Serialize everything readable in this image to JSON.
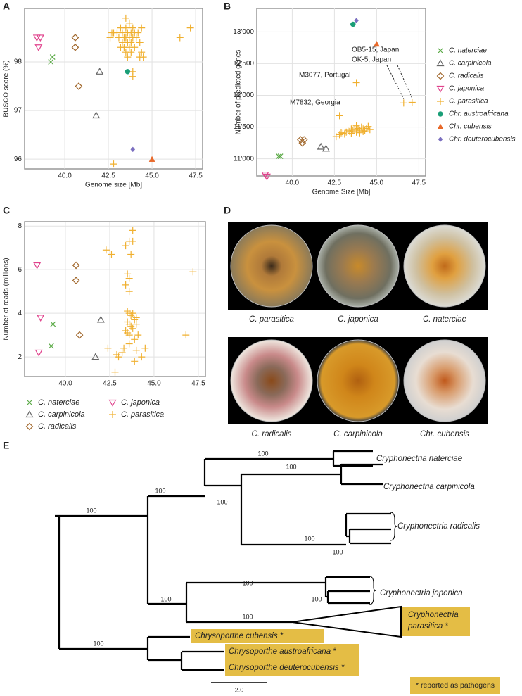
{
  "panels": [
    "A",
    "B",
    "C",
    "D",
    "E"
  ],
  "chart_data": [
    {
      "type": "scatter",
      "xlabel": "Genome size [Mb]",
      "ylabel": "BUSCO score (%)",
      "xlim": [
        37.7,
        47.9
      ],
      "ylim": [
        95.8,
        99.1
      ],
      "xticks": [
        {
          "value": 40,
          "label": "40.0"
        },
        42.5,
        {
          "value": 45,
          "label": "45.0"
        },
        47.5
      ],
      "yticks": [
        96,
        97,
        98
      ],
      "grid": true,
      "legend": false,
      "series": [
        {
          "name": "C. naterciae",
          "color": "#5aaa46",
          "marker": "x",
          "x": [
            39.3,
            39.2
          ],
          "values": [
            98.1,
            98.0
          ]
        },
        {
          "name": "C. carpinicola",
          "color": "#666666",
          "marker": "triangle",
          "x": [
            42.0,
            41.8
          ],
          "values": [
            97.8,
            96.9
          ]
        },
        {
          "name": "C. radicalis",
          "color": "#a0662a",
          "marker": "diamond",
          "x": [
            40.6,
            40.6,
            40.8
          ],
          "values": [
            98.5,
            98.3,
            97.5
          ]
        },
        {
          "name": "C. japonica",
          "color": "#e0428c",
          "marker": "triangle-down",
          "x": [
            38.4,
            38.6,
            38.5
          ],
          "values": [
            98.5,
            98.5,
            98.3
          ]
        },
        {
          "name": "C. parasitica",
          "color": "#f0b030",
          "marker": "plus",
          "x": [
            43.0,
            43.1,
            43.2,
            43.3,
            43.3,
            43.4,
            43.4,
            43.5,
            43.5,
            43.5,
            43.6,
            43.6,
            43.6,
            43.7,
            43.7,
            43.7,
            43.8,
            43.8,
            43.8,
            43.9,
            43.9,
            44.0,
            44.0,
            44.1,
            44.2,
            44.3,
            42.8,
            42.6,
            42.7,
            43.2,
            44.3,
            44.4,
            44.5,
            46.6,
            47.2,
            42.8,
            43.9,
            43.9,
            44.4,
            43.5
          ],
          "values": [
            98.6,
            98.5,
            98.7,
            98.4,
            98.6,
            98.5,
            98.3,
            98.7,
            98.5,
            98.2,
            98.6,
            98.4,
            98.1,
            98.8,
            98.5,
            98.3,
            98.6,
            98.4,
            98.2,
            98.7,
            98.5,
            98.6,
            98.3,
            98.5,
            98.6,
            98.4,
            98.6,
            98.5,
            98.6,
            98.3,
            98.1,
            98.2,
            98.1,
            98.5,
            98.7,
            95.9,
            97.8,
            97.7,
            98.7,
            98.9
          ]
        },
        {
          "name": "Chr. austroafricana",
          "color": "#1a9e77",
          "marker": "circle",
          "x": [
            43.6
          ],
          "values": [
            97.8
          ]
        },
        {
          "name": "Chr. cubensis",
          "color": "#e8692a",
          "marker": "triangle-filled",
          "x": [
            45.0
          ],
          "values": [
            96.0
          ]
        },
        {
          "name": "Chr. deuterocubensis",
          "color": "#7b6fc0",
          "marker": "diamond-filled",
          "x": [
            43.9
          ],
          "values": [
            96.2
          ]
        }
      ]
    },
    {
      "type": "scatter",
      "xlabel": "Genome Size [Mb]",
      "ylabel": "Number of predicted genes",
      "xlim": [
        37.9,
        47.9
      ],
      "ylim": [
        10730,
        13370
      ],
      "xticks": [
        {
          "value": 40,
          "label": "40.0"
        },
        42.5,
        {
          "value": 45,
          "label": "45.0"
        },
        47.5
      ],
      "yticks": [
        {
          "value": 11000,
          "label": "11'000"
        },
        {
          "value": 11500,
          "label": "11'500"
        },
        {
          "value": 12000,
          "label": "12'000"
        },
        {
          "value": 12500,
          "label": "12'500"
        },
        {
          "value": 13000,
          "label": "13'000"
        }
      ],
      "grid": true,
      "legend": "right",
      "annotations": [
        "M7832, Georgia",
        "M3077, Portugal",
        "OB5-15, Japan",
        "OK-5, Japan"
      ],
      "series": [
        {
          "name": "C. naterciae",
          "color": "#5aaa46",
          "marker": "x",
          "x": [
            39.2,
            39.3
          ],
          "values": [
            11040,
            11040
          ]
        },
        {
          "name": "C. carpinicola",
          "color": "#666666",
          "marker": "triangle",
          "x": [
            41.7,
            42.0
          ],
          "values": [
            11190,
            11160
          ]
        },
        {
          "name": "C. radicalis",
          "color": "#a0662a",
          "marker": "diamond",
          "x": [
            40.5,
            40.7,
            40.6
          ],
          "values": [
            11300,
            11300,
            11250
          ]
        },
        {
          "name": "C. japonica",
          "color": "#e0428c",
          "marker": "triangle-down",
          "x": [
            38.4,
            38.5
          ],
          "values": [
            10750,
            10720
          ]
        },
        {
          "name": "C. parasitica",
          "color": "#f0b030",
          "marker": "plus",
          "x": [
            42.6,
            42.8,
            43.0,
            43.2,
            43.3,
            43.4,
            43.5,
            43.6,
            43.7,
            43.8,
            43.9,
            44.0,
            44.1,
            44.2,
            44.3,
            44.4,
            44.5,
            44.6,
            43.5,
            43.8,
            44.0,
            44.2,
            43.1,
            42.9,
            42.8,
            43.8,
            46.6,
            47.1
          ],
          "values": [
            11350,
            11380,
            11400,
            11420,
            11450,
            11430,
            11470,
            11440,
            11460,
            11420,
            11480,
            11450,
            11500,
            11470,
            11440,
            11480,
            11510,
            11460,
            11400,
            11520,
            11410,
            11430,
            11390,
            11410,
            11680,
            12200,
            11880,
            11890
          ]
        },
        {
          "name": "Chr. austroafricana",
          "color": "#1a9e77",
          "marker": "circle",
          "x": [
            43.6
          ],
          "values": [
            13120
          ]
        },
        {
          "name": "Chr. cubensis",
          "color": "#e8692a",
          "marker": "triangle-filled",
          "x": [
            45.0
          ],
          "values": [
            12810
          ]
        },
        {
          "name": "Chr. deuterocubensis",
          "color": "#7b6fc0",
          "marker": "diamond-filled",
          "x": [
            43.8
          ],
          "values": [
            13180
          ]
        }
      ]
    },
    {
      "type": "scatter",
      "ylabel": "Number of reads (millions)",
      "xlim": [
        37.7,
        47.9
      ],
      "ylim": [
        1.1,
        8.2
      ],
      "xticks": [
        {
          "value": 40,
          "label": "40.0"
        },
        42.5,
        {
          "value": 45,
          "label": "45.0"
        },
        47.5
      ],
      "yticks": [
        2,
        4,
        6,
        8
      ],
      "grid": true,
      "legend": "bottom",
      "series": [
        {
          "name": "C. naterciae",
          "color": "#5aaa46",
          "marker": "x",
          "x": [
            39.3,
            39.2
          ],
          "values": [
            3.5,
            2.5
          ]
        },
        {
          "name": "C. carpinicola",
          "color": "#666666",
          "marker": "triangle",
          "x": [
            42.0,
            41.7
          ],
          "values": [
            3.7,
            2.0
          ]
        },
        {
          "name": "C. radicalis",
          "color": "#a0662a",
          "marker": "diamond",
          "x": [
            40.6,
            40.6,
            40.8
          ],
          "values": [
            6.2,
            5.5,
            3.0
          ]
        },
        {
          "name": "C. japonica",
          "color": "#e0428c",
          "marker": "triangle-down",
          "x": [
            38.4,
            38.6,
            38.5
          ],
          "values": [
            6.2,
            3.8,
            2.2
          ]
        },
        {
          "name": "C. parasitica",
          "color": "#f0b030",
          "marker": "plus",
          "x": [
            42.3,
            42.6,
            43.4,
            43.6,
            43.8,
            43.7,
            43.5,
            43.6,
            43.4,
            43.6,
            43.5,
            43.6,
            43.7,
            43.8,
            43.9,
            44.0,
            43.5,
            43.6,
            43.7,
            43.8,
            44.0,
            44.1,
            43.4,
            43.5,
            43.6,
            43.9,
            43.2,
            43.3,
            42.9,
            43.0,
            42.4,
            42.8,
            43.6,
            44.0,
            44.3,
            43.9,
            44.5,
            46.8,
            47.2,
            43.8
          ],
          "values": [
            6.9,
            6.7,
            7.1,
            7.3,
            7.8,
            6.7,
            5.8,
            5.6,
            5.3,
            5.0,
            4.1,
            4.0,
            3.9,
            4.0,
            3.7,
            3.8,
            3.6,
            3.5,
            3.4,
            3.3,
            3.5,
            3.0,
            3.2,
            3.1,
            3.0,
            2.8,
            2.2,
            2.4,
            2.1,
            2.0,
            2.4,
            1.3,
            2.6,
            2.3,
            2.0,
            1.8,
            2.4,
            3.0,
            5.9,
            7.3
          ]
        }
      ]
    }
  ],
  "photos": [
    "C. parasitica",
    "C. japonica",
    "C. naterciae",
    "C. radicalis",
    "C. carpinicola",
    "Chr. cubensis"
  ],
  "tree": {
    "taxa": [
      "Cryphonectria naterciae",
      "Cryphonectria carpinicola",
      "Cryphonectria radicalis",
      "Cryphonectria japonica",
      [
        "Cryphonectria",
        "parasitica *"
      ],
      "Chrysoporthe cubensis *",
      "Chrysoporthe austroafricana *",
      "Chrysoporthe deuterocubensis *"
    ],
    "support": [
      100,
      100,
      100,
      100,
      100,
      100,
      100,
      100,
      100,
      100,
      100,
      100
    ],
    "scale": "2.0",
    "note": "* reported as pathogens"
  }
}
